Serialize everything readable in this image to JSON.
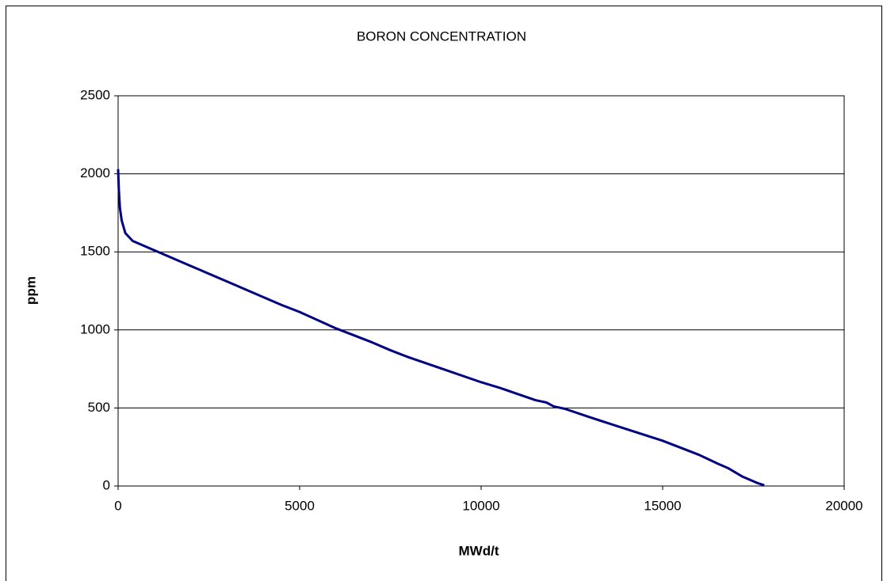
{
  "chart_data": {
    "type": "line",
    "title": "BORON CONCENTRATION",
    "xlabel": "MWd/t",
    "ylabel": "ppm",
    "x": [
      0,
      20,
      50,
      100,
      200,
      400,
      1000,
      1500,
      2000,
      3000,
      4000,
      4500,
      5000,
      6000,
      7000,
      7500,
      8000,
      9000,
      10000,
      10500,
      11000,
      11500,
      11800,
      12000,
      12300,
      13000,
      14000,
      15000,
      15500,
      16000,
      16500,
      16800,
      17200,
      17600,
      17800
    ],
    "values": [
      2030,
      1900,
      1780,
      1700,
      1620,
      1570,
      1510,
      1460,
      1410,
      1310,
      1210,
      1160,
      1115,
      1010,
      920,
      870,
      825,
      745,
      665,
      630,
      590,
      550,
      535,
      510,
      495,
      440,
      365,
      290,
      245,
      200,
      145,
      115,
      60,
      20,
      5
    ],
    "color": "#000080",
    "xlim": [
      0,
      20000
    ],
    "xticks": [
      0,
      5000,
      10000,
      15000,
      20000
    ],
    "ylim": [
      0,
      2500
    ],
    "yticks": [
      0,
      500,
      1000,
      1500,
      2000,
      2500
    ],
    "grid": true
  }
}
